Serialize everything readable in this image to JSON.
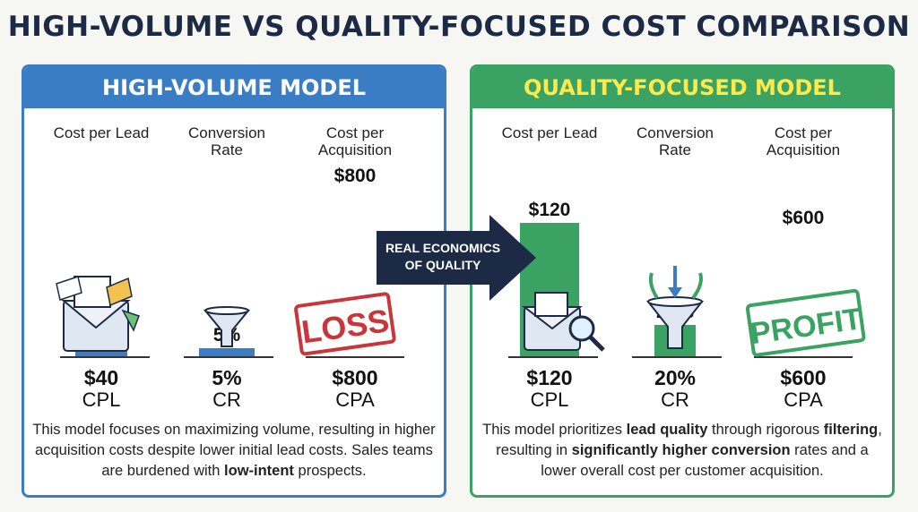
{
  "title": "HIGH-VOLUME VS QUALITY-FOCUSED COST COMPARISON",
  "arrow": {
    "line1": "REAL ECONOMICS",
    "line2": "OF QUALITY"
  },
  "colors": {
    "high_volume": "#3b7dc4",
    "quality_focused": "#3aa363",
    "title": "#1c2a45",
    "loss_stamp": "#c8353a",
    "profit_stamp": "#3aa363"
  },
  "panels": [
    {
      "id": "hv",
      "title": "HIGH-VOLUME MODEL",
      "stamp": "LOSS",
      "description": {
        "p1": "This model focuses on maximizing volume, resulting in higher acquisition costs despite lower initial lead costs. Sales teams are burdened with ",
        "b1": "low-intent",
        "p2": " prospects."
      }
    },
    {
      "id": "qf",
      "title": "QUALITY-FOCUSED MODEL",
      "stamp": "PROFIT",
      "description": {
        "p1": "This model prioritizes ",
        "b1": "lead quality",
        "p2": " through rigorous ",
        "b2": "filtering",
        "p3": ", resulting in ",
        "b3": "significantly higher conversion",
        "p4": " rates and a lower overall cost per customer acquisition."
      }
    }
  ],
  "chart_data": [
    {
      "type": "bar",
      "title": "HIGH-VOLUME MODEL",
      "categories": [
        "Cost per Lead",
        "Conversion Rate",
        "Cost per Acquisition"
      ],
      "category_labels": [
        [
          "Cost per Lead"
        ],
        [
          "Conversion",
          "Rate"
        ],
        [
          "Cost per",
          "Acquisition"
        ]
      ],
      "short_labels": [
        "CPL",
        "CR",
        "CPA"
      ],
      "values": [
        40,
        5,
        800
      ],
      "display_values": [
        "$40",
        "5%",
        "$800"
      ],
      "color": "#3b7dc4"
    },
    {
      "type": "bar",
      "title": "QUALITY-FOCUSED MODEL",
      "categories": [
        "Cost per Lead",
        "Conversion Rate",
        "Cost per Acquisition"
      ],
      "category_labels": [
        [
          "Cost per Lead"
        ],
        [
          "Conversion",
          "Rate"
        ],
        [
          "Cost per",
          "Acquisition"
        ]
      ],
      "short_labels": [
        "CPL",
        "CR",
        "CPA"
      ],
      "values": [
        120,
        20,
        600
      ],
      "display_values": [
        "$120",
        "20%",
        "$600"
      ],
      "color": "#3aa363"
    }
  ]
}
